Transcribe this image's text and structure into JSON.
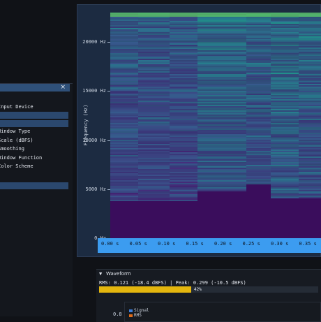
{
  "settings_panel": {
    "close_label": "×",
    "input_device_label": "Input Device",
    "items": [
      "Window Type",
      "Scale (dBFS)",
      "Smoothing",
      "Window Function",
      "Color Scheme"
    ]
  },
  "spectrogram": {
    "y_axis_title": "Frequency (Hz)",
    "y_ticks": [
      {
        "label": "20000 Hz",
        "value": 20000
      },
      {
        "label": "15000 Hz",
        "value": 15000
      },
      {
        "label": "10000 Hz",
        "value": 10000
      },
      {
        "label": "5000 Hz",
        "value": 5000
      },
      {
        "label": "0 Hz",
        "value": 0
      }
    ],
    "x_ticks": [
      "0.00 s",
      "0.05 s",
      "0.10 s",
      "0.15 s",
      "0.20 s",
      "0.25 s",
      "0.30 s",
      "0.35 s"
    ],
    "y_max": 23000,
    "colors": {
      "low": "#3a0d5c",
      "mid": "#3b528b",
      "high": "#21918c",
      "peak": "#5ec962",
      "axis_strip": "#3c9cf0"
    }
  },
  "waveform": {
    "title": "Waveform",
    "toggle_icon": "triangle-down-icon",
    "rms_text": "RMS: 0.121 (-18.4 dBFS) | Peak: 0.299 (-10.5 dBFS)",
    "level_percent": 42,
    "level_label": "42%",
    "level_color": "#e4b60e",
    "y_tick_label": "0.8",
    "legend": [
      {
        "label": "Signal",
        "color": "#3c7dd9"
      },
      {
        "label": "RMS",
        "color": "#e06c1a"
      }
    ]
  }
}
